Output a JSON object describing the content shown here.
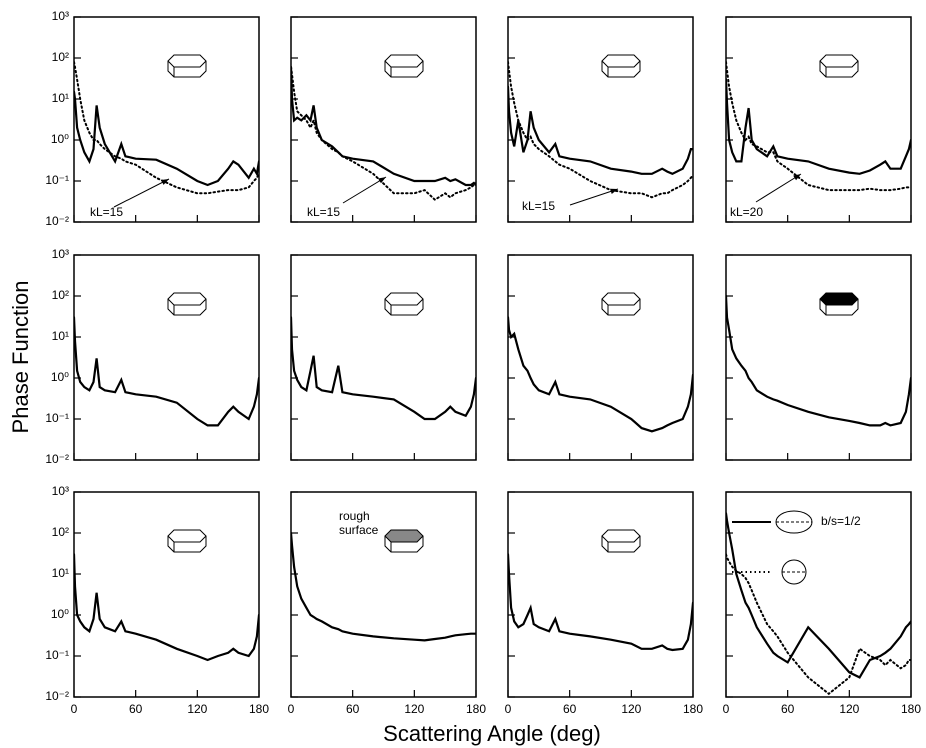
{
  "x_axis": {
    "label": "Scattering Angle (deg)",
    "lim": [
      0,
      180
    ],
    "ticks": [
      0,
      60,
      120,
      180
    ]
  },
  "y_axis": {
    "label": "Phase Function",
    "log": true,
    "lim": [
      0.01,
      1000
    ],
    "ticks": [
      {
        "value": 0.01,
        "label": "10⁻²"
      },
      {
        "value": 0.1,
        "label": "10⁻¹"
      },
      {
        "value": 1,
        "label": "10⁰"
      },
      {
        "value": 10,
        "label": "10¹"
      },
      {
        "value": 100,
        "label": "10²"
      },
      {
        "value": 1000,
        "label": "10³"
      }
    ]
  },
  "chart_data": [
    {
      "type": "line",
      "annotation": [
        "kL=15"
      ],
      "x": [
        0,
        1,
        3,
        6,
        10,
        15,
        19,
        22,
        25,
        30,
        40,
        46,
        50,
        60,
        80,
        100,
        120,
        130,
        140,
        150,
        155,
        160,
        170,
        175,
        178,
        180
      ],
      "series": [
        {
          "style": "solid",
          "color": "#000000",
          "values": [
            15,
            10,
            2,
            1,
            0.5,
            0.3,
            0.6,
            7,
            2,
            0.8,
            0.3,
            0.8,
            0.4,
            0.35,
            0.33,
            0.2,
            0.1,
            0.08,
            0.1,
            0.2,
            0.3,
            0.25,
            0.12,
            0.2,
            0.15,
            0.3
          ]
        },
        {
          "style": "dotted",
          "color": "#000000",
          "values": [
            80,
            60,
            30,
            10,
            3,
            1.5,
            1,
            1,
            0.8,
            0.6,
            0.4,
            0.35,
            0.3,
            0.25,
            0.12,
            0.07,
            0.05,
            0.05,
            0.055,
            0.06,
            0.06,
            0.06,
            0.07,
            0.1,
            0.12,
            0.15
          ]
        }
      ]
    },
    {
      "type": "line",
      "annotation": [
        "kL=15"
      ],
      "x": [
        0,
        1,
        3,
        6,
        10,
        15,
        19,
        22,
        25,
        30,
        40,
        46,
        50,
        60,
        80,
        100,
        120,
        130,
        140,
        150,
        155,
        160,
        170,
        175,
        178,
        180
      ],
      "series": [
        {
          "style": "solid",
          "color": "#000000",
          "values": [
            60,
            10,
            3,
            3.5,
            3,
            4,
            3,
            7,
            2,
            1,
            0.7,
            0.5,
            0.4,
            0.35,
            0.3,
            0.15,
            0.1,
            0.1,
            0.1,
            0.12,
            0.1,
            0.11,
            0.08,
            0.08,
            0.09,
            0.08
          ]
        },
        {
          "style": "dotted",
          "color": "#000000",
          "values": [
            60,
            40,
            15,
            5,
            4,
            3,
            2,
            3,
            1.5,
            1,
            0.6,
            0.5,
            0.4,
            0.3,
            0.15,
            0.05,
            0.05,
            0.06,
            0.035,
            0.05,
            0.04,
            0.05,
            0.06,
            0.07,
            0.08,
            0.09
          ]
        }
      ]
    },
    {
      "type": "line",
      "annotation": [
        "kL=15"
      ],
      "x": [
        0,
        1,
        3,
        6,
        10,
        15,
        19,
        22,
        25,
        30,
        40,
        46,
        50,
        60,
        80,
        100,
        120,
        130,
        140,
        150,
        155,
        160,
        170,
        175,
        178,
        180
      ],
      "series": [
        {
          "style": "solid",
          "color": "#000000",
          "values": [
            20,
            5,
            1.5,
            0.7,
            3,
            0.5,
            1,
            5,
            2,
            1,
            0.5,
            0.8,
            0.4,
            0.35,
            0.3,
            0.2,
            0.17,
            0.15,
            0.15,
            0.2,
            0.17,
            0.15,
            0.2,
            0.35,
            0.6,
            0.6
          ]
        },
        {
          "style": "dotted",
          "color": "#000000",
          "values": [
            80,
            50,
            20,
            8,
            3,
            1.5,
            1,
            1.2,
            0.8,
            0.6,
            0.4,
            0.3,
            0.25,
            0.2,
            0.1,
            0.06,
            0.05,
            0.05,
            0.04,
            0.05,
            0.05,
            0.06,
            0.08,
            0.1,
            0.12,
            0.14
          ]
        }
      ]
    },
    {
      "type": "line",
      "annotation": [
        "kL=20"
      ],
      "x": [
        0,
        1,
        3,
        6,
        10,
        15,
        19,
        22,
        25,
        30,
        40,
        46,
        50,
        60,
        80,
        100,
        120,
        130,
        140,
        150,
        155,
        160,
        170,
        175,
        178,
        180
      ],
      "series": [
        {
          "style": "solid",
          "color": "#000000",
          "values": [
            30,
            8,
            1,
            0.5,
            0.3,
            0.3,
            2,
            6,
            1,
            0.6,
            0.4,
            0.7,
            0.4,
            0.35,
            0.3,
            0.2,
            0.16,
            0.15,
            0.18,
            0.25,
            0.3,
            0.2,
            0.2,
            0.4,
            0.6,
            1
          ]
        },
        {
          "style": "dotted",
          "color": "#000000",
          "values": [
            80,
            50,
            20,
            8,
            3,
            1.5,
            1,
            1.2,
            0.8,
            0.7,
            0.5,
            0.5,
            0.3,
            0.2,
            0.08,
            0.06,
            0.06,
            0.06,
            0.065,
            0.06,
            0.06,
            0.06,
            0.065,
            0.07,
            0.07,
            0.07
          ]
        }
      ]
    },
    {
      "type": "line",
      "x": [
        0,
        1,
        3,
        6,
        10,
        15,
        19,
        22,
        25,
        30,
        40,
        46,
        50,
        60,
        80,
        100,
        120,
        130,
        140,
        150,
        155,
        160,
        170,
        175,
        178,
        180
      ],
      "series": [
        {
          "style": "solid",
          "color": "#000000",
          "values": [
            30,
            8,
            1.5,
            0.8,
            0.6,
            0.5,
            0.8,
            3,
            0.6,
            0.5,
            0.45,
            0.9,
            0.45,
            0.4,
            0.35,
            0.25,
            0.1,
            0.07,
            0.07,
            0.15,
            0.2,
            0.15,
            0.1,
            0.2,
            0.4,
            1
          ]
        }
      ]
    },
    {
      "type": "line",
      "x": [
        0,
        1,
        3,
        6,
        10,
        15,
        19,
        22,
        25,
        30,
        40,
        46,
        50,
        60,
        80,
        100,
        120,
        130,
        140,
        150,
        155,
        160,
        170,
        175,
        178,
        180
      ],
      "series": [
        {
          "style": "solid",
          "color": "#000000",
          "values": [
            30,
            5,
            1.5,
            0.9,
            0.6,
            0.5,
            1.5,
            3.5,
            0.6,
            0.5,
            0.45,
            2,
            0.45,
            0.4,
            0.35,
            0.3,
            0.15,
            0.1,
            0.1,
            0.15,
            0.2,
            0.15,
            0.12,
            0.2,
            0.4,
            1
          ]
        }
      ]
    },
    {
      "type": "line",
      "x": [
        0,
        1,
        3,
        6,
        10,
        15,
        19,
        22,
        25,
        30,
        40,
        46,
        50,
        60,
        80,
        100,
        120,
        130,
        140,
        150,
        155,
        160,
        170,
        175,
        178,
        180
      ],
      "series": [
        {
          "style": "solid",
          "color": "#000000",
          "values": [
            30,
            15,
            10,
            12,
            5,
            2,
            1.5,
            1,
            0.7,
            0.5,
            0.4,
            0.8,
            0.4,
            0.35,
            0.3,
            0.2,
            0.1,
            0.06,
            0.05,
            0.06,
            0.07,
            0.08,
            0.1,
            0.2,
            0.4,
            1.2
          ]
        }
      ]
    },
    {
      "type": "line",
      "x": [
        0,
        1,
        3,
        6,
        10,
        15,
        19,
        22,
        25,
        30,
        40,
        46,
        50,
        60,
        80,
        100,
        120,
        130,
        140,
        150,
        155,
        160,
        170,
        175,
        178,
        180
      ],
      "series": [
        {
          "style": "solid",
          "color": "#000000",
          "values": [
            100,
            30,
            15,
            5,
            3,
            2,
            1.5,
            1,
            0.8,
            0.5,
            0.35,
            0.3,
            0.28,
            0.22,
            0.15,
            0.11,
            0.09,
            0.08,
            0.07,
            0.07,
            0.08,
            0.07,
            0.08,
            0.15,
            0.4,
            1
          ]
        }
      ]
    },
    {
      "type": "line",
      "x": [
        0,
        1,
        3,
        6,
        10,
        15,
        19,
        22,
        25,
        30,
        40,
        46,
        50,
        60,
        80,
        100,
        120,
        130,
        140,
        150,
        155,
        160,
        170,
        175,
        178,
        180
      ],
      "series": [
        {
          "style": "solid",
          "color": "#000000",
          "values": [
            30,
            5,
            1,
            0.7,
            0.5,
            0.4,
            0.8,
            3.5,
            0.8,
            0.5,
            0.4,
            0.7,
            0.4,
            0.35,
            0.25,
            0.15,
            0.1,
            0.08,
            0.1,
            0.12,
            0.15,
            0.12,
            0.1,
            0.15,
            0.3,
            1
          ]
        }
      ]
    },
    {
      "type": "line",
      "annotation": [
        "rough",
        "surface"
      ],
      "x": [
        0,
        1,
        3,
        6,
        10,
        15,
        19,
        22,
        25,
        30,
        40,
        46,
        50,
        60,
        80,
        100,
        120,
        130,
        140,
        150,
        155,
        160,
        170,
        175,
        178,
        180
      ],
      "series": [
        {
          "style": "solid",
          "color": "#000000",
          "values": [
            100,
            50,
            15,
            5,
            2.5,
            1.5,
            1,
            0.9,
            0.8,
            0.7,
            0.5,
            0.45,
            0.4,
            0.35,
            0.3,
            0.27,
            0.25,
            0.24,
            0.26,
            0.28,
            0.3,
            0.32,
            0.34,
            0.35,
            0.35,
            0.35
          ]
        }
      ]
    },
    {
      "type": "line",
      "x": [
        0,
        1,
        3,
        6,
        10,
        15,
        19,
        22,
        25,
        30,
        40,
        46,
        50,
        60,
        80,
        100,
        120,
        130,
        140,
        150,
        155,
        160,
        170,
        175,
        178,
        180
      ],
      "series": [
        {
          "style": "solid",
          "color": "#000000",
          "values": [
            30,
            10,
            1.5,
            0.7,
            0.5,
            0.6,
            1,
            1.5,
            0.6,
            0.5,
            0.4,
            0.8,
            0.4,
            0.35,
            0.3,
            0.25,
            0.2,
            0.15,
            0.15,
            0.18,
            0.15,
            0.14,
            0.15,
            0.25,
            0.6,
            2
          ]
        }
      ]
    },
    {
      "type": "line",
      "x": [
        0,
        1,
        3,
        6,
        10,
        15,
        19,
        22,
        25,
        30,
        40,
        46,
        50,
        60,
        80,
        100,
        120,
        130,
        140,
        150,
        155,
        160,
        170,
        175,
        178,
        180
      ],
      "series": [
        {
          "name": "b/s=1/2",
          "style": "solid",
          "color": "#000000",
          "values": [
            300,
            200,
            100,
            40,
            10,
            4,
            2,
            1.5,
            1,
            0.5,
            0.2,
            0.12,
            0.1,
            0.07,
            0.5,
            0.15,
            0.04,
            0.03,
            0.08,
            0.1,
            0.12,
            0.15,
            0.3,
            0.5,
            0.6,
            0.7
          ]
        },
        {
          "style": "dotted",
          "color": "#000000",
          "values": [
            30,
            25,
            20,
            15,
            12,
            10,
            8,
            6,
            4,
            2,
            0.6,
            0.4,
            0.3,
            0.12,
            0.03,
            0.012,
            0.03,
            0.15,
            0.1,
            0.08,
            0.06,
            0.08,
            0.05,
            0.06,
            0.08,
            0.08
          ]
        }
      ]
    }
  ]
}
